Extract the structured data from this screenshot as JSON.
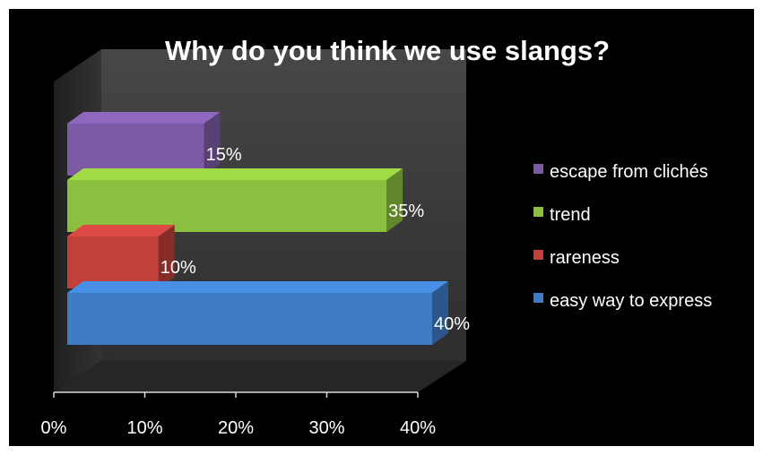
{
  "chart_data": {
    "type": "bar",
    "orientation": "horizontal",
    "three_d": true,
    "title": "Why do you think we use slangs?",
    "xlabel": "",
    "ylabel": "",
    "xlim": [
      0,
      40
    ],
    "x_ticks": [
      "0%",
      "10%",
      "20%",
      "30%",
      "40%"
    ],
    "grid": false,
    "legend_position": "right",
    "categories": [
      "escape from clichés",
      "trend",
      "rareness",
      "easy way to express"
    ],
    "values": [
      15,
      35,
      10,
      40
    ],
    "data_labels": [
      "15%",
      "35%",
      "10%",
      "40%"
    ],
    "colors": [
      "#7d5aa6",
      "#8cbf3f",
      "#c0403c",
      "#3f7cc8"
    ]
  }
}
